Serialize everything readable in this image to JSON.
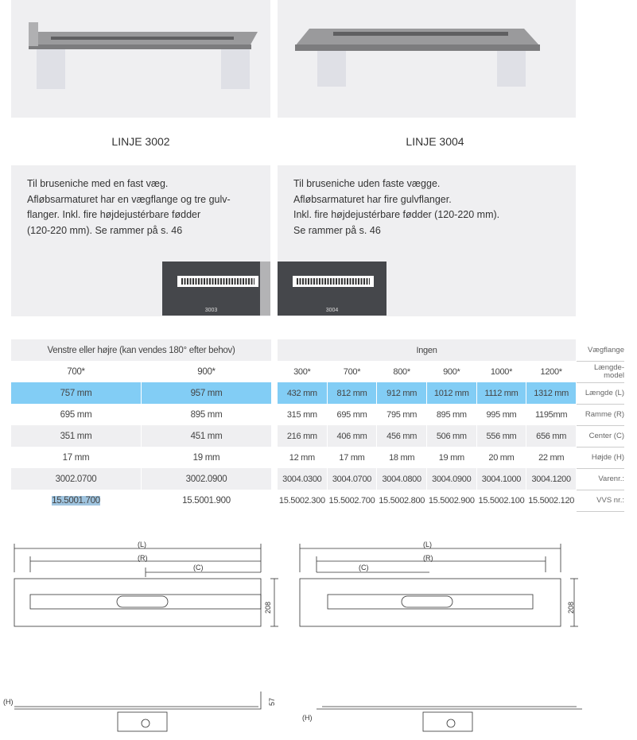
{
  "products": [
    {
      "title": "LINJE 3002",
      "description": [
        "Til bruseniche med en fast væg.",
        "Afløbsarmaturet har en vægflange og tre gulv-",
        "flanger. Inkl. fire højdejustérbare fødder",
        "(120-220 mm). Se rammer på s. 46"
      ],
      "grate_label": "3003"
    },
    {
      "title": "LINJE 3004",
      "description": [
        "Til bruseniche uden faste vægge.",
        "Afløbsarmaturet har fire gulvflanger.",
        "Inkl. fire højdejustérbare fødder (120-220 mm).",
        "Se rammer på s. 46"
      ],
      "grate_label": "3004"
    }
  ],
  "row_labels": [
    "Vægflange",
    "Længde-model",
    "Længde (L)",
    "Ramme (R)",
    "Center (C)",
    "Højde (H)",
    "Varenr.:",
    "VVS nr.:"
  ],
  "left_table": {
    "header": "Venstre eller højre (kan vendes 180° efter behov)",
    "rows": [
      [
        "700*",
        "900*"
      ],
      [
        "757 mm",
        "957 mm"
      ],
      [
        "695 mm",
        "895 mm"
      ],
      [
        "351 mm",
        "451 mm"
      ],
      [
        "17 mm",
        "19 mm"
      ],
      [
        "3002.0700",
        "3002.0900"
      ],
      [
        "15.5001.700",
        "15.5001.900"
      ]
    ]
  },
  "right_table": {
    "header": "Ingen",
    "rows": [
      [
        "300*",
        "700*",
        "800*",
        "900*",
        "1000*",
        "1200*"
      ],
      [
        "432 mm",
        "812 mm",
        "912 mm",
        "1012 mm",
        "1112 mm",
        "1312 mm"
      ],
      [
        "315 mm",
        "695 mm",
        "795 mm",
        "895 mm",
        "995 mm",
        "1195mm"
      ],
      [
        "216 mm",
        "406 mm",
        "456 mm",
        "506 mm",
        "556 mm",
        "656 mm"
      ],
      [
        "12 mm",
        "17 mm",
        "18 mm",
        "19 mm",
        "20 mm",
        "22 mm"
      ],
      [
        "3004.0300",
        "3004.0700",
        "3004.0800",
        "3004.0900",
        "3004.1000",
        "3004.1200"
      ],
      [
        "15.5002.300",
        "15.5002.700",
        "15.5002.800",
        "15.5002.900",
        "15.5002.100",
        "15.5002.120"
      ]
    ]
  },
  "drawings": {
    "L": "(L)",
    "R": "(R)",
    "C": "(C)",
    "H": "(H)",
    "width": "208",
    "height": "57"
  },
  "colors": {
    "highlight_row": "#82cdf5",
    "panel": "#efeff1",
    "grate": "#45474b"
  }
}
